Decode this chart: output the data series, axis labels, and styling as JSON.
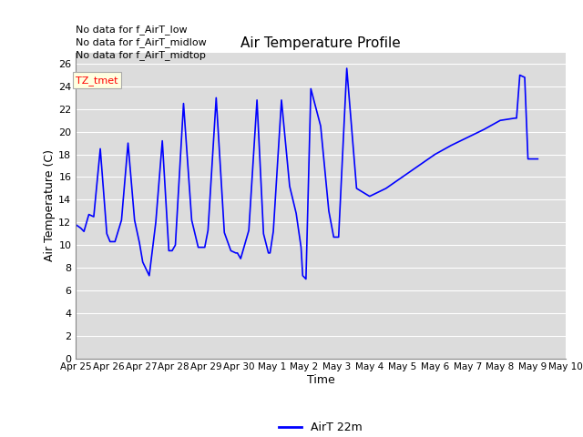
{
  "title": "Air Temperature Profile",
  "xlabel": "Time",
  "ylabel": "Air Temperature (C)",
  "line_color": "blue",
  "line_label": "AirT 22m",
  "ylim": [
    0,
    27
  ],
  "yticks": [
    0,
    2,
    4,
    6,
    8,
    10,
    12,
    14,
    16,
    18,
    20,
    22,
    24,
    26
  ],
  "background_color": "#dcdcdc",
  "x_dates": [
    "Apr 25",
    "Apr 26",
    "Apr 27",
    "Apr 28",
    "Apr 29",
    "Apr 30",
    "May 1",
    "May 2",
    "May 3",
    "May 4",
    "May 5",
    "May 6",
    "May 7",
    "May 8",
    "May 9",
    "May 10"
  ],
  "legend_texts": [
    "No data for f_AirT_low",
    "No data for f_AirT_midlow",
    "No data for f_AirT_midtop",
    "TZ_tmet"
  ],
  "x_points": [
    0.0,
    0.15,
    0.25,
    0.4,
    0.55,
    0.75,
    0.95,
    1.05,
    1.2,
    1.4,
    1.6,
    1.8,
    1.95,
    2.05,
    2.25,
    2.45,
    2.65,
    2.85,
    2.95,
    3.05,
    3.3,
    3.55,
    3.75,
    3.9,
    3.95,
    4.05,
    4.3,
    4.55,
    4.75,
    4.9,
    4.95,
    5.05,
    5.3,
    5.55,
    5.75,
    5.9,
    5.95,
    6.05,
    6.3,
    6.55,
    6.75,
    6.9,
    6.95,
    7.05,
    7.2,
    7.5,
    7.75,
    7.9,
    7.95,
    8.05,
    8.3,
    8.6,
    8.6,
    9.0,
    9.5,
    10.0,
    10.5,
    11.0,
    11.5,
    12.0,
    12.5,
    13.0,
    13.45,
    13.5,
    13.6,
    13.75,
    13.85,
    13.95,
    14.05,
    14.15
  ],
  "y_points": [
    11.8,
    11.5,
    11.2,
    12.7,
    12.5,
    18.5,
    11.0,
    10.3,
    10.3,
    12.2,
    19.0,
    12.2,
    10.2,
    8.5,
    7.3,
    12.0,
    19.2,
    9.5,
    9.5,
    10.0,
    22.5,
    12.2,
    9.8,
    9.8,
    9.8,
    11.3,
    23.0,
    11.1,
    9.5,
    9.3,
    9.3,
    8.8,
    11.3,
    22.8,
    11.0,
    9.3,
    9.3,
    11.2,
    22.8,
    15.2,
    12.8,
    9.8,
    7.3,
    7.0,
    23.8,
    20.5,
    13.0,
    10.7,
    10.7,
    10.7,
    25.6,
    15.0,
    15.0,
    14.3,
    15.0,
    16.0,
    17.0,
    18.0,
    18.8,
    19.5,
    20.2,
    21.0,
    21.2,
    21.2,
    25.0,
    24.8,
    17.6,
    17.6,
    17.6,
    17.6
  ]
}
